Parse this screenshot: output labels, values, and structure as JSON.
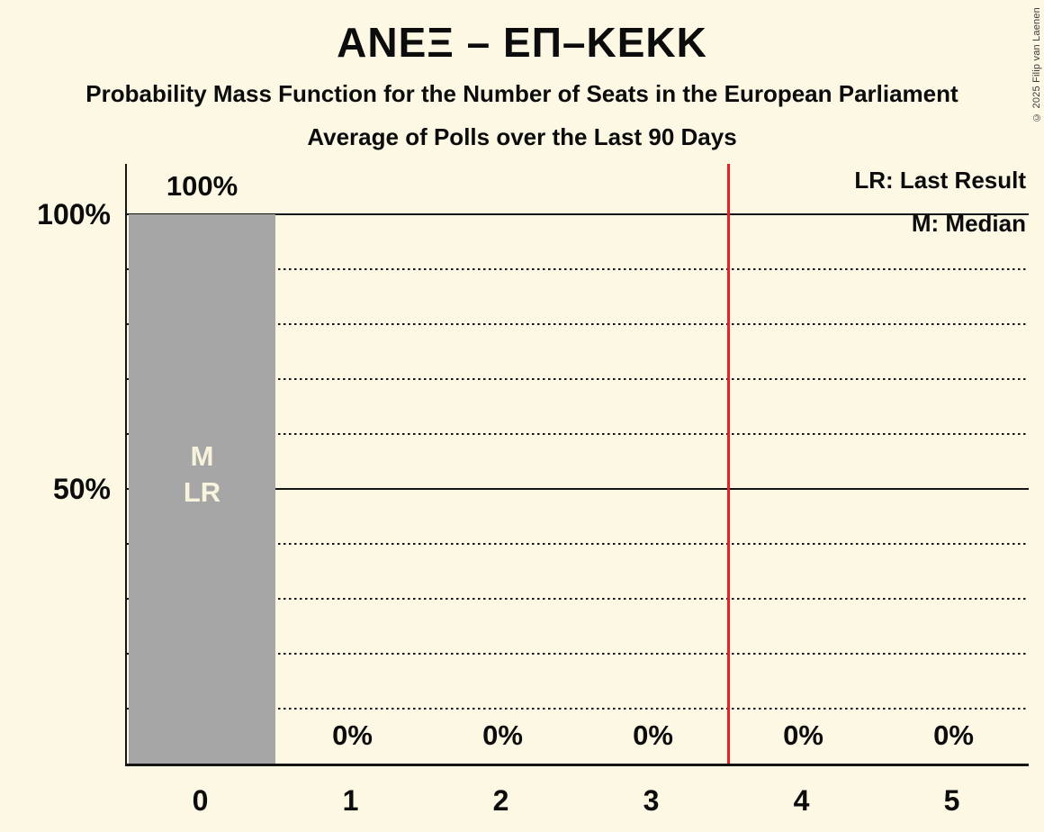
{
  "header": {
    "title": "ΑΝΕΞ – ΕΠ–ΚΕΚΚ",
    "subtitle1": "Probability Mass Function for the Number of Seats in the European Parliament",
    "subtitle2": "Average of Polls over the Last 90 Days"
  },
  "legend": {
    "last_result": "LR: Last Result",
    "median": "M: Median"
  },
  "copyright": "© 2025 Filip van Laenen",
  "chart_data": {
    "type": "bar",
    "title": "ΑΝΕΞ – ΕΠ–ΚΕΚΚ",
    "subtitle": "Probability Mass Function for the Number of Seats in the European Parliament",
    "subtitle2": "Average of Polls over the Last 90 Days",
    "xlabel": "",
    "ylabel": "",
    "categories": [
      "0",
      "1",
      "2",
      "3",
      "4",
      "5"
    ],
    "values": [
      100,
      0,
      0,
      0,
      0,
      0
    ],
    "bar_value_labels": [
      "100%",
      "0%",
      "0%",
      "0%",
      "0%",
      "0%"
    ],
    "ylim": [
      0,
      100
    ],
    "y_axis_ticks": [
      {
        "pct": 100,
        "label": "100%"
      },
      {
        "pct": 50,
        "label": "50%"
      }
    ],
    "solid_gridlines_pct": [
      100,
      50
    ],
    "dotted_gridlines_pct": [
      90,
      80,
      70,
      60,
      40,
      30,
      20,
      10
    ],
    "threshold_line_between_seats": 3.5,
    "annotations": {
      "median_label": "M",
      "median_category_index": 0,
      "last_result_label": "LR",
      "last_result_category_index": 0
    },
    "legend_position": "top-right",
    "grid": "horizontal-dotted-with-solid-at-50-and-100",
    "colors": {
      "background": "#fcf8e3",
      "bar": "#a6a6a6",
      "bar_annotation_text": "#f8f3dc",
      "text": "#0c0c0c",
      "threshold_line": "#ee1c25",
      "axis": "#151515"
    }
  }
}
